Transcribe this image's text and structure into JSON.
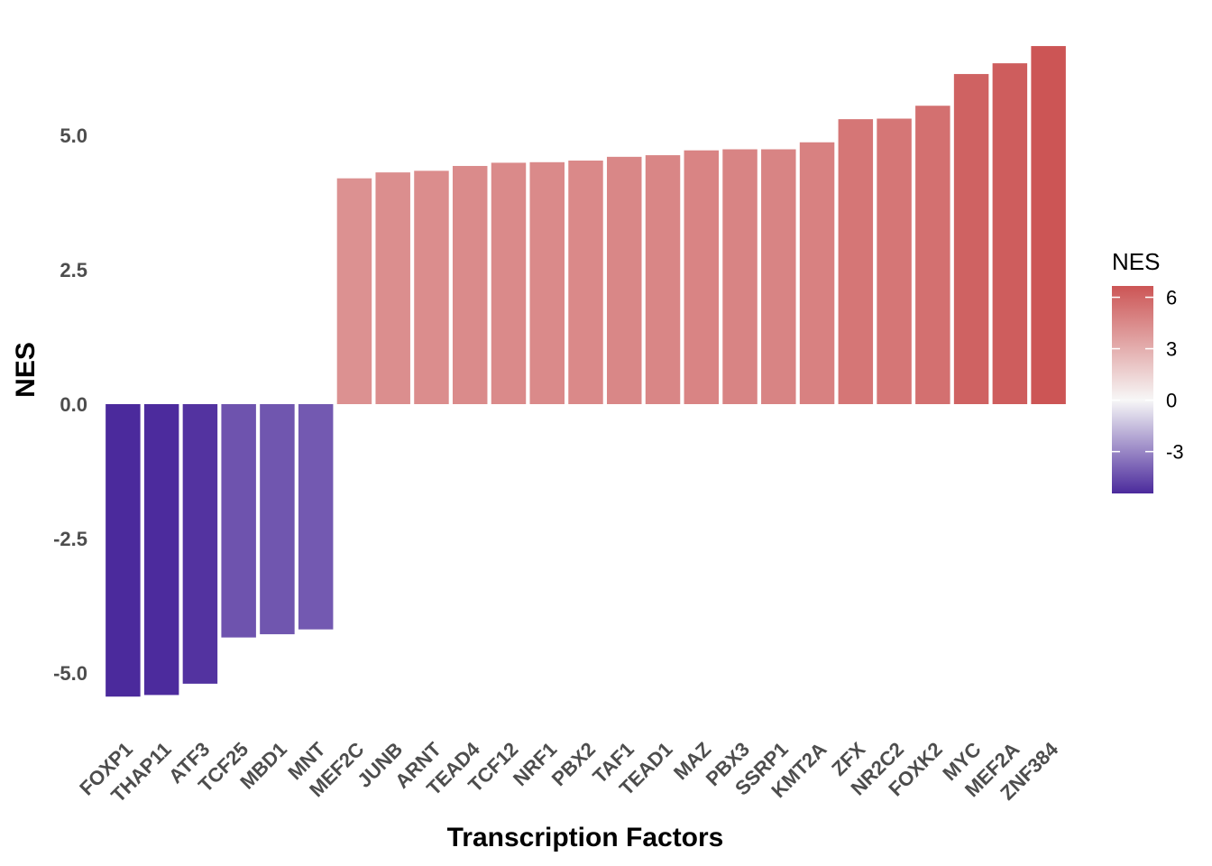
{
  "chart_data": {
    "type": "bar",
    "xlabel": "Transcription Factors",
    "ylabel": "NES",
    "ylim": [
      -5.8,
      7.0
    ],
    "yticks": [
      -5.0,
      -2.5,
      0.0,
      2.5,
      5.0
    ],
    "ytick_labels": [
      "-5.0",
      "-2.5",
      "0.0",
      "2.5",
      "5.0"
    ],
    "grid": false,
    "categories": [
      "FOXP1",
      "THAP11",
      "ATF3",
      "TCF25",
      "MBD1",
      "MNT",
      "MEF2C",
      "JUNB",
      "ARNT",
      "TEAD4",
      "TCF12",
      "NRF1",
      "PBX2",
      "TAF1",
      "TEAD1",
      "MAZ",
      "PBX3",
      "SSRP1",
      "KMT2A",
      "ZFX",
      "NR2C2",
      "FOXK2",
      "MYC",
      "MEF2A",
      "ZNF384"
    ],
    "values": [
      -5.44,
      -5.41,
      -5.2,
      -4.34,
      -4.28,
      -4.19,
      4.2,
      4.31,
      4.34,
      4.43,
      4.49,
      4.5,
      4.53,
      4.6,
      4.63,
      4.72,
      4.74,
      4.74,
      4.87,
      5.3,
      5.31,
      5.55,
      6.14,
      6.34,
      6.66
    ],
    "legend": {
      "title": "NES",
      "position": "right",
      "range": [
        -5.44,
        6.66
      ],
      "ticks": [
        6,
        3,
        0,
        -3
      ],
      "tick_labels": [
        "6",
        "3",
        "0",
        "-3"
      ],
      "low_color": "#4b2a9c",
      "mid_color": "#f7f7f7",
      "high_color": "#cc5555"
    }
  }
}
